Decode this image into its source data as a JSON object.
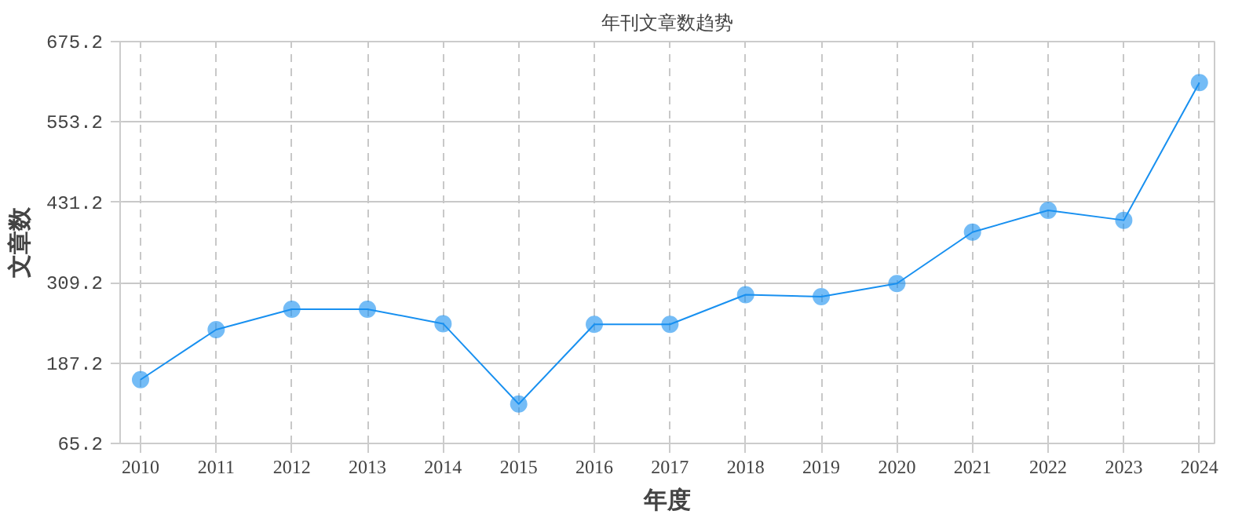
{
  "chart_data": {
    "type": "line",
    "title": "年刊文章数趋势",
    "xlabel": "年度",
    "ylabel": "文章数",
    "categories": [
      "2010",
      "2011",
      "2012",
      "2013",
      "2014",
      "2015",
      "2016",
      "2017",
      "2018",
      "2019",
      "2020",
      "2021",
      "2022",
      "2023",
      "2024"
    ],
    "series": [
      {
        "color": "#1890f0",
        "values": [
          162,
          238,
          269,
          269,
          247,
          125,
          246,
          246,
          291,
          288,
          308,
          386,
          419,
          404,
          613
        ]
      }
    ],
    "ylim": [
      65.2,
      675.2
    ],
    "yticks": [
      {
        "value": 65.2,
        "label": "65.2"
      },
      {
        "value": 187.2,
        "label": "187.2"
      },
      {
        "value": 309.2,
        "label": "309.2"
      },
      {
        "value": 431.2,
        "label": "431.2"
      },
      {
        "value": 553.2,
        "label": "553.2"
      },
      {
        "value": 675.2,
        "label": "675.2"
      }
    ],
    "grid": true,
    "marker": "circle",
    "line_style": "solid"
  }
}
